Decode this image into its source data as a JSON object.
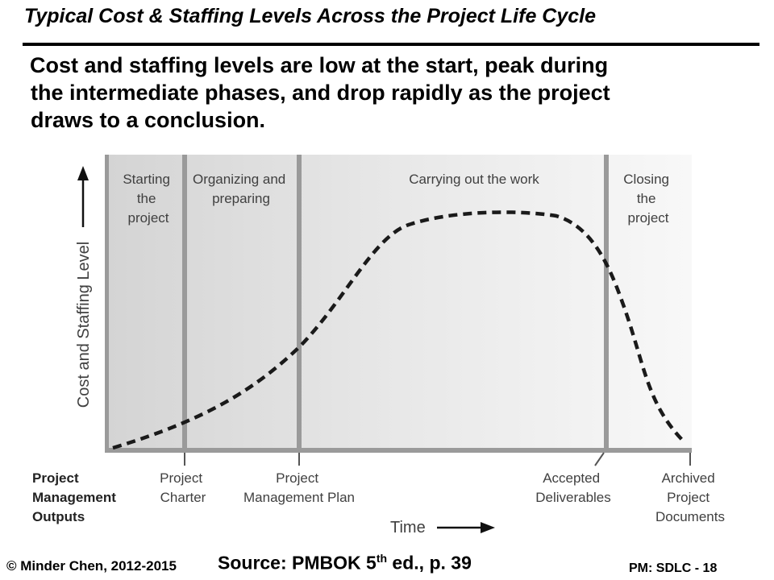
{
  "slide": {
    "title": "Typical Cost & Staffing Levels Across the Project Life Cycle",
    "bullet_lines": [
      "Cost and staffing levels are low at the start, peak during",
      "the intermediate phases, and drop rapidly as the project",
      "draws to a conclusion."
    ]
  },
  "diagram": {
    "y_axis_label": "Cost and Staffing Level",
    "x_axis_label": "Time",
    "phases": [
      {
        "lines": [
          "Starting",
          "the",
          "project"
        ]
      },
      {
        "lines": [
          "Organizing and",
          "preparing"
        ]
      },
      {
        "lines": [
          "Carrying out the work"
        ]
      },
      {
        "lines": [
          "Closing",
          "the",
          "project"
        ]
      }
    ],
    "outputs_heading": [
      "Project",
      "Management",
      "Outputs"
    ],
    "outputs": [
      {
        "lines": [
          "Project",
          "Charter"
        ]
      },
      {
        "lines": [
          "Project",
          "Management Plan"
        ]
      },
      {
        "lines": [
          "Accepted",
          "Deliverables"
        ]
      },
      {
        "lines": [
          "Archived",
          "Project",
          "Documents"
        ]
      }
    ],
    "colors": {
      "band_dark": "#d2d2d2",
      "band_light": "#f7f7f7",
      "divider": "#9a9a9a",
      "text_gray": "#404040",
      "curve": "#1a1a1a"
    }
  },
  "footer": {
    "copyright": "© Minder Chen, 2012-2015",
    "source_prefix": "Source: PMBOK 5",
    "source_sup": "th",
    "source_suffix": " ed., p. 39",
    "page": "PM: SDLC - 18"
  }
}
